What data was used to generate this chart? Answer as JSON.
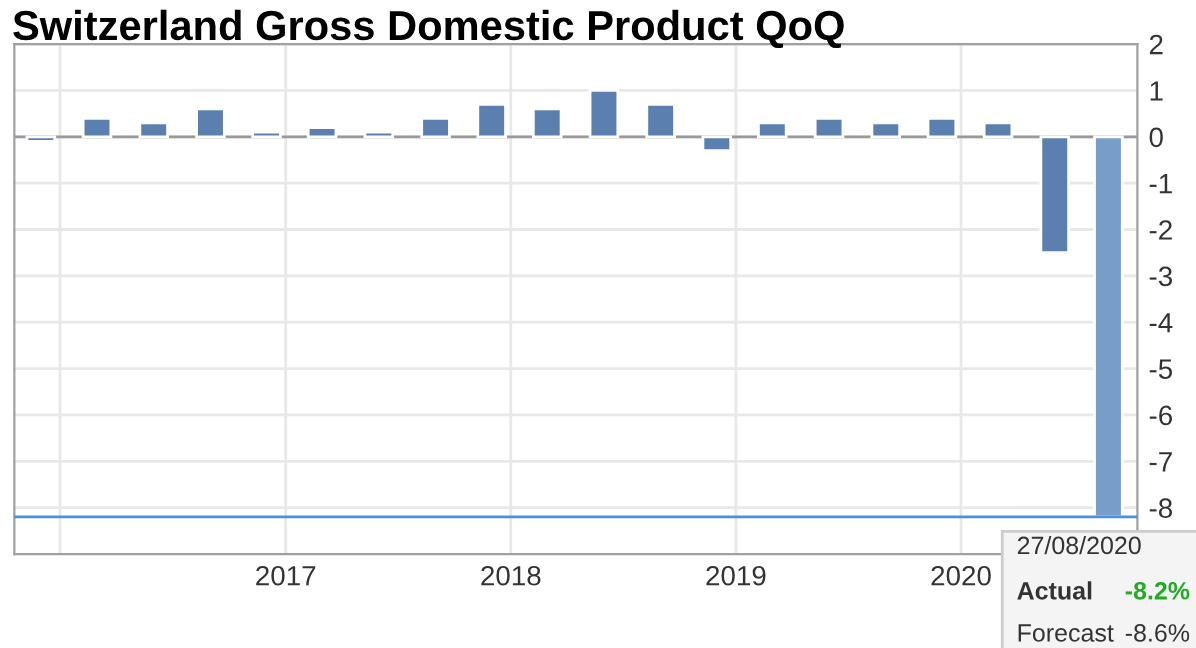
{
  "chart_data": {
    "type": "bar",
    "title": "Switzerland Gross Domestic Product QoQ",
    "x": [
      "2015-12-01",
      "2016-03-01",
      "2016-06-01",
      "2016-09-01",
      "2016-12-01",
      "2017-03-01",
      "2017-06-01",
      "2017-09-01",
      "2017-12-01",
      "2018-03-01",
      "2018-06-01",
      "2018-09-01",
      "2018-12-01",
      "2019-03-01",
      "2019-06-01",
      "2019-09-01",
      "2019-12-01",
      "2020-03-01",
      "2020-06-01",
      "2020-08-27"
    ],
    "values": [
      -0.1,
      0.4,
      0.3,
      0.6,
      0.1,
      0.2,
      0.1,
      0.4,
      0.7,
      0.6,
      1.0,
      0.7,
      -0.3,
      0.3,
      0.4,
      0.3,
      0.4,
      0.3,
      -2.5,
      -8.2
    ],
    "colors": [
      "#5b80b0",
      "#5b80b0",
      "#5b80b0",
      "#5b80b0",
      "#5b80b0",
      "#5b80b0",
      "#5b80b0",
      "#5b80b0",
      "#5b80b0",
      "#5b80b0",
      "#5b80b0",
      "#5b80b0",
      "#5b80b0",
      "#5b80b0",
      "#5b80b0",
      "#5b80b0",
      "#5b80b0",
      "#5b80b0",
      "#5b80b0",
      "#789dc9"
    ],
    "xlim": [
      "2015-10-19",
      "2020-10-13"
    ],
    "xticks": [
      {
        "value": "2016-01-01",
        "label": null
      },
      {
        "value": "2017-01-01",
        "label": "2017"
      },
      {
        "value": "2018-01-01",
        "label": "2018"
      },
      {
        "value": "2019-01-01",
        "label": "2019"
      },
      {
        "value": "2020-01-01",
        "label": "2020"
      }
    ],
    "ylim": [
      -9,
      2
    ],
    "yticks": [
      2,
      1,
      0,
      -1,
      -2,
      -3,
      -4,
      -5,
      -6,
      -7,
      -8
    ],
    "grid": true,
    "ref_lines": [
      {
        "axis": "y",
        "value": -8.2,
        "color": "#4a90e2"
      }
    ],
    "annotations": [
      "27/08/2020",
      "Actual",
      "-8.2%",
      "Forecast",
      "-8.6%"
    ]
  }
}
